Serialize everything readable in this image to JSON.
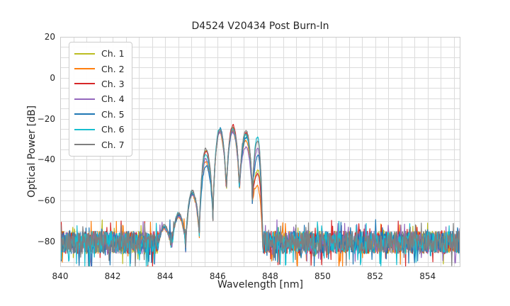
{
  "figure": {
    "background": "#ffffff"
  },
  "chart_data": {
    "type": "line",
    "title": "D4524 V20434 Post Burn-In",
    "xlabel": "Wavelength [nm]",
    "ylabel": "Optical Power [dB]",
    "xlim": [
      840,
      855.25
    ],
    "ylim": [
      -92.5,
      20
    ],
    "xticks": [
      840,
      842,
      844,
      846,
      848,
      850,
      852,
      854
    ],
    "yticks": [
      20,
      0,
      -20,
      -40,
      -60,
      -80
    ],
    "grid": {
      "on": true,
      "x_step": 0.5,
      "y_step": 5,
      "color": "#dcdcdc",
      "spine_color": "#cccccc"
    },
    "legend": {
      "position": "upper-left"
    },
    "series": [
      {
        "name": "Ch. 1",
        "color": "#bcbd22"
      },
      {
        "name": "Ch. 2",
        "color": "#ff7f0e"
      },
      {
        "name": "Ch. 3",
        "color": "#d62728"
      },
      {
        "name": "Ch. 4",
        "color": "#9467bd"
      },
      {
        "name": "Ch. 5",
        "color": "#1f77b4"
      },
      {
        "name": "Ch. 6",
        "color": "#17becf"
      },
      {
        "name": "Ch. 7",
        "color": "#7f7f7f"
      }
    ],
    "spectrum": {
      "description": "Side-mode lobed spectra; per-channel lobe peak power in dB at each lobe center wavelength in nm; nulls between lobes; flat noise floor elsewhere",
      "signal_range": [
        843.7,
        847.72
      ],
      "lobe_centers": [
        843.97,
        844.52,
        845.03,
        845.55,
        846.08,
        846.58,
        847.08,
        847.53
      ],
      "null_positions": [
        843.7,
        844.25,
        844.78,
        845.3,
        845.82,
        846.33,
        846.83,
        847.32,
        847.72
      ],
      "null_depths": [
        -86,
        -85,
        -83,
        -76,
        -68,
        -56,
        -55.5,
        -58,
        -86
      ],
      "lobe_peaks_by_channel": [
        [
          -73.0,
          -67.0,
          -56.5,
          -35.5,
          -25.8,
          -24.6,
          -27.5,
          -45.0
        ],
        [
          -74.0,
          -68.0,
          -57.5,
          -41.0,
          -26.8,
          -26.2,
          -30.5,
          -53.0
        ],
        [
          -72.5,
          -66.5,
          -56.0,
          -36.0,
          -25.3,
          -23.2,
          -27.0,
          -47.0
        ],
        [
          -73.5,
          -67.5,
          -57.0,
          -39.5,
          -26.5,
          -26.6,
          -34.0,
          -34.5
        ],
        [
          -73.0,
          -67.0,
          -56.5,
          -43.0,
          -24.6,
          -25.2,
          -29.0,
          -38.0
        ],
        [
          -72.5,
          -66.0,
          -55.5,
          -37.5,
          -24.9,
          -24.9,
          -27.8,
          -29.0
        ],
        [
          -72.0,
          -66.0,
          -55.0,
          -34.5,
          -25.1,
          -24.4,
          -25.6,
          -30.5
        ]
      ],
      "channel_x_shift": [
        0.01,
        -0.012,
        0.006,
        -0.006,
        0.012,
        -0.01,
        0.0
      ],
      "noise_floor_mean": -80.5,
      "noise_floor_spread": 11
    }
  }
}
